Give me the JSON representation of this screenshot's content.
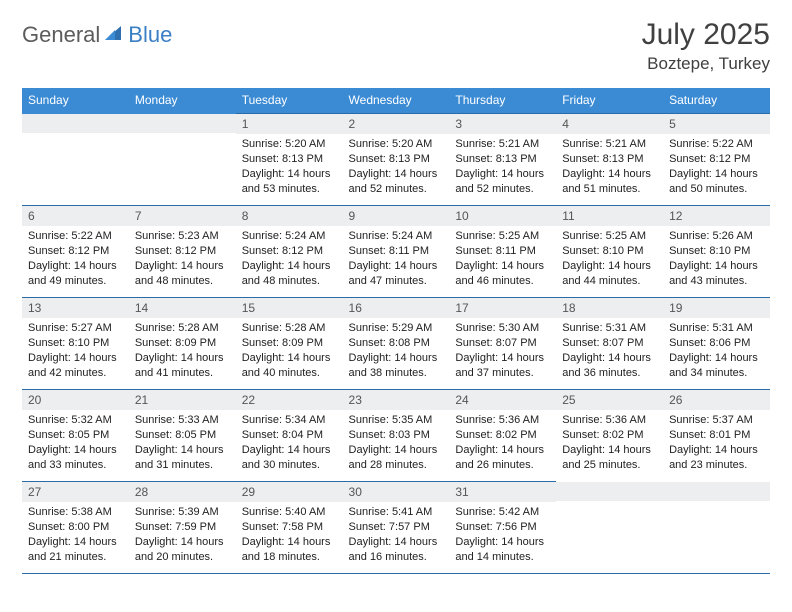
{
  "brand": {
    "part1": "General",
    "part2": "Blue"
  },
  "title": "July 2025",
  "location": "Boztepe, Turkey",
  "colors": {
    "header_bg": "#3b8bd4",
    "header_text": "#ffffff",
    "daynum_bg": "#eceeef",
    "cell_border": "#2a6ca8",
    "logo_gray": "#5c5c5c",
    "logo_blue": "#3b7fc4",
    "text": "#222222"
  },
  "weekdays": [
    "Sunday",
    "Monday",
    "Tuesday",
    "Wednesday",
    "Thursday",
    "Friday",
    "Saturday"
  ],
  "weeks": [
    [
      {
        "n": "",
        "sr": "",
        "ss": "",
        "dl": ""
      },
      {
        "n": "",
        "sr": "",
        "ss": "",
        "dl": ""
      },
      {
        "n": "1",
        "sr": "Sunrise: 5:20 AM",
        "ss": "Sunset: 8:13 PM",
        "dl": "Daylight: 14 hours and 53 minutes."
      },
      {
        "n": "2",
        "sr": "Sunrise: 5:20 AM",
        "ss": "Sunset: 8:13 PM",
        "dl": "Daylight: 14 hours and 52 minutes."
      },
      {
        "n": "3",
        "sr": "Sunrise: 5:21 AM",
        "ss": "Sunset: 8:13 PM",
        "dl": "Daylight: 14 hours and 52 minutes."
      },
      {
        "n": "4",
        "sr": "Sunrise: 5:21 AM",
        "ss": "Sunset: 8:13 PM",
        "dl": "Daylight: 14 hours and 51 minutes."
      },
      {
        "n": "5",
        "sr": "Sunrise: 5:22 AM",
        "ss": "Sunset: 8:12 PM",
        "dl": "Daylight: 14 hours and 50 minutes."
      }
    ],
    [
      {
        "n": "6",
        "sr": "Sunrise: 5:22 AM",
        "ss": "Sunset: 8:12 PM",
        "dl": "Daylight: 14 hours and 49 minutes."
      },
      {
        "n": "7",
        "sr": "Sunrise: 5:23 AM",
        "ss": "Sunset: 8:12 PM",
        "dl": "Daylight: 14 hours and 48 minutes."
      },
      {
        "n": "8",
        "sr": "Sunrise: 5:24 AM",
        "ss": "Sunset: 8:12 PM",
        "dl": "Daylight: 14 hours and 48 minutes."
      },
      {
        "n": "9",
        "sr": "Sunrise: 5:24 AM",
        "ss": "Sunset: 8:11 PM",
        "dl": "Daylight: 14 hours and 47 minutes."
      },
      {
        "n": "10",
        "sr": "Sunrise: 5:25 AM",
        "ss": "Sunset: 8:11 PM",
        "dl": "Daylight: 14 hours and 46 minutes."
      },
      {
        "n": "11",
        "sr": "Sunrise: 5:25 AM",
        "ss": "Sunset: 8:10 PM",
        "dl": "Daylight: 14 hours and 44 minutes."
      },
      {
        "n": "12",
        "sr": "Sunrise: 5:26 AM",
        "ss": "Sunset: 8:10 PM",
        "dl": "Daylight: 14 hours and 43 minutes."
      }
    ],
    [
      {
        "n": "13",
        "sr": "Sunrise: 5:27 AM",
        "ss": "Sunset: 8:10 PM",
        "dl": "Daylight: 14 hours and 42 minutes."
      },
      {
        "n": "14",
        "sr": "Sunrise: 5:28 AM",
        "ss": "Sunset: 8:09 PM",
        "dl": "Daylight: 14 hours and 41 minutes."
      },
      {
        "n": "15",
        "sr": "Sunrise: 5:28 AM",
        "ss": "Sunset: 8:09 PM",
        "dl": "Daylight: 14 hours and 40 minutes."
      },
      {
        "n": "16",
        "sr": "Sunrise: 5:29 AM",
        "ss": "Sunset: 8:08 PM",
        "dl": "Daylight: 14 hours and 38 minutes."
      },
      {
        "n": "17",
        "sr": "Sunrise: 5:30 AM",
        "ss": "Sunset: 8:07 PM",
        "dl": "Daylight: 14 hours and 37 minutes."
      },
      {
        "n": "18",
        "sr": "Sunrise: 5:31 AM",
        "ss": "Sunset: 8:07 PM",
        "dl": "Daylight: 14 hours and 36 minutes."
      },
      {
        "n": "19",
        "sr": "Sunrise: 5:31 AM",
        "ss": "Sunset: 8:06 PM",
        "dl": "Daylight: 14 hours and 34 minutes."
      }
    ],
    [
      {
        "n": "20",
        "sr": "Sunrise: 5:32 AM",
        "ss": "Sunset: 8:05 PM",
        "dl": "Daylight: 14 hours and 33 minutes."
      },
      {
        "n": "21",
        "sr": "Sunrise: 5:33 AM",
        "ss": "Sunset: 8:05 PM",
        "dl": "Daylight: 14 hours and 31 minutes."
      },
      {
        "n": "22",
        "sr": "Sunrise: 5:34 AM",
        "ss": "Sunset: 8:04 PM",
        "dl": "Daylight: 14 hours and 30 minutes."
      },
      {
        "n": "23",
        "sr": "Sunrise: 5:35 AM",
        "ss": "Sunset: 8:03 PM",
        "dl": "Daylight: 14 hours and 28 minutes."
      },
      {
        "n": "24",
        "sr": "Sunrise: 5:36 AM",
        "ss": "Sunset: 8:02 PM",
        "dl": "Daylight: 14 hours and 26 minutes."
      },
      {
        "n": "25",
        "sr": "Sunrise: 5:36 AM",
        "ss": "Sunset: 8:02 PM",
        "dl": "Daylight: 14 hours and 25 minutes."
      },
      {
        "n": "26",
        "sr": "Sunrise: 5:37 AM",
        "ss": "Sunset: 8:01 PM",
        "dl": "Daylight: 14 hours and 23 minutes."
      }
    ],
    [
      {
        "n": "27",
        "sr": "Sunrise: 5:38 AM",
        "ss": "Sunset: 8:00 PM",
        "dl": "Daylight: 14 hours and 21 minutes."
      },
      {
        "n": "28",
        "sr": "Sunrise: 5:39 AM",
        "ss": "Sunset: 7:59 PM",
        "dl": "Daylight: 14 hours and 20 minutes."
      },
      {
        "n": "29",
        "sr": "Sunrise: 5:40 AM",
        "ss": "Sunset: 7:58 PM",
        "dl": "Daylight: 14 hours and 18 minutes."
      },
      {
        "n": "30",
        "sr": "Sunrise: 5:41 AM",
        "ss": "Sunset: 7:57 PM",
        "dl": "Daylight: 14 hours and 16 minutes."
      },
      {
        "n": "31",
        "sr": "Sunrise: 5:42 AM",
        "ss": "Sunset: 7:56 PM",
        "dl": "Daylight: 14 hours and 14 minutes."
      },
      {
        "n": "",
        "sr": "",
        "ss": "",
        "dl": ""
      },
      {
        "n": "",
        "sr": "",
        "ss": "",
        "dl": ""
      }
    ]
  ]
}
